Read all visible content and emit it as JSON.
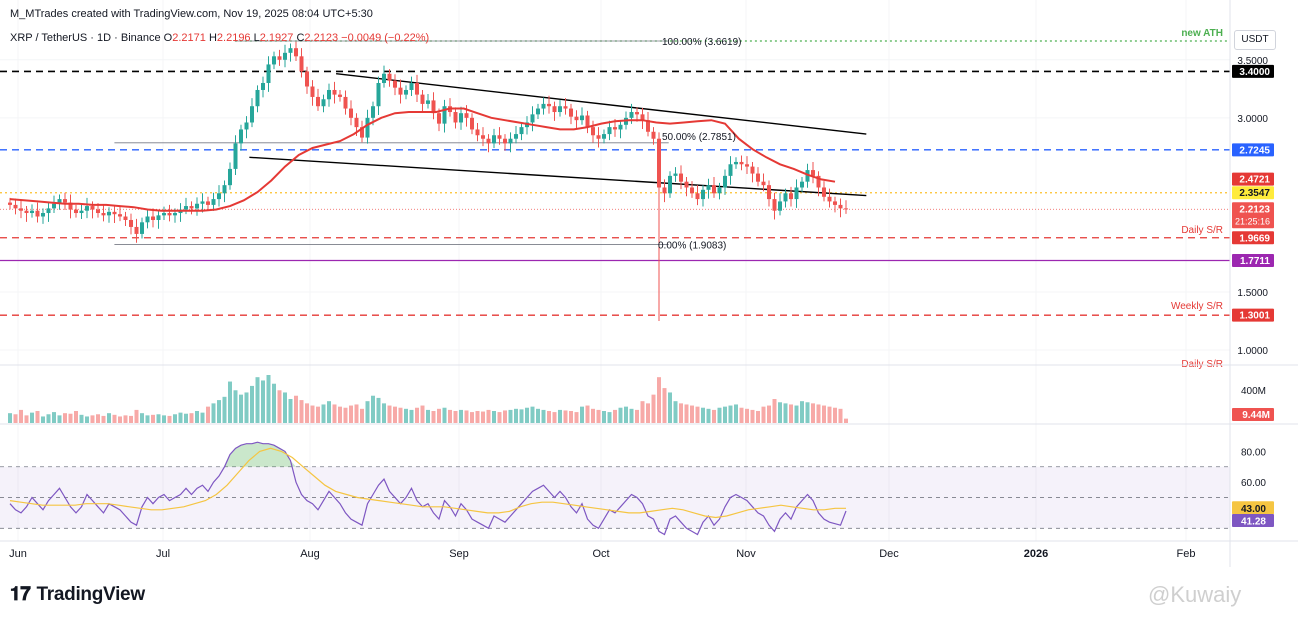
{
  "header": {
    "credit": "M_MTrades created with TradingView.com, Nov 19, 2025 08:04 UTC+5:30",
    "symbol": "XRP / TetherUS · 1D · Binance",
    "o_label": "O",
    "o_value": "2.2171",
    "h_label": "H",
    "h_value": "2.2196",
    "l_label": "L",
    "l_value": "2.1927",
    "c_label": "C",
    "c_value": "2.2123",
    "change": "−0.0049 (−0.22%)",
    "currency": "USDT"
  },
  "brand": {
    "logo_text": "TradingView",
    "watermark": "@Kuwaiy"
  },
  "colors": {
    "bull": "#26a69a",
    "bear": "#ef5350",
    "ma": "#e53935",
    "rsi": "#7e57c2",
    "rsi_ma": "#f5c542",
    "support_red": "#e53935",
    "support_blue": "#2962ff",
    "purple_line": "#9c27b0",
    "ath_green": "#4caf50"
  },
  "chart_data": [
    {
      "type": "candlestick",
      "title": "XRP / TetherUS · 1D · Binance",
      "ylim": [
        0.9,
        3.72
      ],
      "x_ticks": [
        "Jun",
        "Jul",
        "Aug",
        "Sep",
        "Oct",
        "Nov",
        "Dec",
        "2026",
        "Feb"
      ],
      "y_ticks": [
        "3.5000",
        "3.0000",
        "1.5000",
        "1.0000"
      ],
      "last_price": "2.2123",
      "countdown": "21:25:16",
      "price_badges": [
        {
          "label": "3.4000",
          "value": 3.4,
          "color": "#000000"
        },
        {
          "label": "2.7245",
          "value": 2.7245,
          "color": "#2962ff"
        },
        {
          "label": "2.4721",
          "value": 2.4721,
          "color": "#e53935"
        },
        {
          "label": "2.3547",
          "value": 2.3547,
          "color": "#ffeb3b"
        },
        {
          "label": "1.9669",
          "value": 1.9669,
          "color": "#e53935"
        },
        {
          "label": "1.7711",
          "value": 1.7711,
          "color": "#9c27b0"
        },
        {
          "label": "1.3001",
          "value": 1.3001,
          "color": "#e53935"
        }
      ],
      "levels": [
        {
          "name": "resistance-3.40",
          "value": 3.4,
          "style": "dashed",
          "color": "#000000"
        },
        {
          "name": "level-2.7245",
          "value": 2.7245,
          "style": "dashed",
          "color": "#2962ff"
        },
        {
          "name": "level-2.3547",
          "value": 2.3547,
          "style": "dotted",
          "color": "#fbc02d"
        },
        {
          "name": "daily-sr",
          "value": 1.9669,
          "style": "dashed",
          "color": "#e53935"
        },
        {
          "name": "level-1.7711",
          "value": 1.7711,
          "style": "solid",
          "color": "#9c27b0"
        },
        {
          "name": "weekly-sr",
          "value": 1.3001,
          "style": "dashed",
          "color": "#e53935"
        },
        {
          "name": "ath",
          "value": 3.6619,
          "style": "dotted",
          "color": "#4caf50"
        }
      ],
      "annotations": [
        {
          "text": "new ATH"
        },
        {
          "text": "100.00% (3.6619)"
        },
        {
          "text": "50.00% (2.7851)"
        },
        {
          "text": "0.00% (1.9083)"
        },
        {
          "text": "Daily S/R"
        },
        {
          "text": "Weekly S/R"
        },
        {
          "text": "Daily S/R"
        }
      ],
      "closes": [
        2.25,
        2.22,
        2.2,
        2.18,
        2.2,
        2.15,
        2.18,
        2.22,
        2.26,
        2.3,
        2.27,
        2.21,
        2.18,
        2.2,
        2.24,
        2.21,
        2.18,
        2.16,
        2.19,
        2.17,
        2.15,
        2.12,
        2.06,
        2.0,
        2.1,
        2.15,
        2.12,
        2.16,
        2.18,
        2.16,
        2.18,
        2.21,
        2.24,
        2.22,
        2.26,
        2.28,
        2.25,
        2.3,
        2.35,
        2.42,
        2.56,
        2.78,
        2.9,
        2.96,
        3.1,
        3.24,
        3.3,
        3.46,
        3.53,
        3.5,
        3.56,
        3.6,
        3.53,
        3.4,
        3.27,
        3.18,
        3.1,
        3.16,
        3.24,
        3.2,
        3.18,
        3.08,
        3.0,
        2.92,
        2.83,
        3.0,
        3.1,
        3.3,
        3.38,
        3.32,
        3.26,
        3.2,
        3.24,
        3.3,
        3.2,
        3.12,
        3.15,
        3.04,
        2.95,
        3.1,
        3.05,
        2.96,
        3.04,
        3.0,
        2.9,
        2.85,
        2.82,
        2.78,
        2.85,
        2.82,
        2.78,
        2.82,
        2.86,
        2.92,
        2.96,
        3.03,
        3.08,
        3.12,
        3.1,
        3.05,
        3.1,
        3.08,
        3.01,
        2.98,
        3.02,
        2.92,
        2.85,
        2.82,
        2.86,
        2.92,
        2.9,
        2.94,
        3.0,
        3.05,
        3.03,
        2.98,
        2.88,
        2.82,
        2.4,
        2.35,
        2.5,
        2.52,
        2.45,
        2.4,
        2.35,
        2.3,
        2.38,
        2.42,
        2.35,
        2.4,
        2.5,
        2.6,
        2.62,
        2.6,
        2.58,
        2.52,
        2.45,
        2.42,
        2.3,
        2.2,
        2.28,
        2.35,
        2.3,
        2.4,
        2.45,
        2.55,
        2.5,
        2.4,
        2.32,
        2.28,
        2.25,
        2.22,
        2.2123
      ],
      "ma_series": {
        "name": "",
        "values": [
          2.3,
          2.29,
          2.28,
          2.27,
          2.26,
          2.26,
          2.25,
          2.25,
          2.24,
          2.23,
          2.21,
          2.2,
          2.2,
          2.2,
          2.2,
          2.21,
          2.24,
          2.29,
          2.36,
          2.46,
          2.58,
          2.68,
          2.74,
          2.77,
          2.8,
          2.86,
          2.94,
          3.0,
          3.04,
          3.05,
          3.05,
          3.05,
          3.08,
          3.08,
          3.04,
          3.0,
          2.98,
          2.96,
          2.94,
          2.92,
          2.9,
          2.9,
          2.92,
          2.95,
          2.97,
          2.98,
          2.98,
          2.96,
          2.95,
          2.96,
          2.97,
          2.98,
          2.95,
          2.82,
          2.73,
          2.66,
          2.6,
          2.56,
          2.51,
          2.47,
          2.45
        ],
        "start_index": 0,
        "step": 2.5
      },
      "trendlines": [
        {
          "name": "upper-trendline",
          "from": [
            "2025-08-06",
            3.38
          ],
          "to": [
            "2025-11-24",
            2.86
          ]
        },
        {
          "name": "lower-trendline",
          "from": [
            "2025-07-19",
            2.66
          ],
          "to": [
            "2025-11-24",
            2.33
          ]
        },
        {
          "name": "fib-50-line",
          "from": [
            "2025-06-21",
            2.785
          ],
          "to": [
            "2025-10-14",
            2.785
          ]
        },
        {
          "name": "fib-0-line",
          "from": [
            "2025-06-21",
            1.9083
          ],
          "to": [
            "2025-10-14",
            1.9083
          ]
        },
        {
          "name": "fib-100-line",
          "from": [
            "2025-07-16",
            3.6619
          ],
          "to": [
            "2025-10-14",
            3.6619
          ]
        }
      ]
    },
    {
      "type": "bar",
      "title": "Volume",
      "y_ticks": [
        "400M"
      ],
      "last_value_label": "9.44M",
      "values": [
        90,
        80,
        120,
        70,
        95,
        110,
        60,
        80,
        100,
        70,
        90,
        85,
        110,
        75,
        60,
        70,
        80,
        65,
        90,
        75,
        60,
        70,
        65,
        120,
        90,
        70,
        75,
        80,
        70,
        65,
        80,
        95,
        85,
        90,
        110,
        95,
        150,
        180,
        210,
        240,
        380,
        300,
        260,
        280,
        340,
        420,
        390,
        440,
        360,
        300,
        280,
        220,
        250,
        210,
        180,
        160,
        150,
        170,
        200,
        170,
        150,
        140,
        160,
        170,
        130,
        200,
        250,
        230,
        180,
        160,
        150,
        140,
        130,
        120,
        140,
        160,
        120,
        110,
        130,
        140,
        120,
        110,
        120,
        115,
        100,
        110,
        105,
        120,
        110,
        100,
        115,
        120,
        130,
        125,
        140,
        150,
        130,
        120,
        110,
        100,
        120,
        115,
        110,
        100,
        150,
        160,
        130,
        120,
        110,
        100,
        120,
        140,
        150,
        130,
        120,
        200,
        180,
        260,
        420,
        320,
        280,
        200,
        180,
        170,
        160,
        150,
        140,
        130,
        120,
        140,
        150,
        160,
        170,
        140,
        130,
        120,
        110,
        150,
        160,
        220,
        190,
        180,
        170,
        160,
        200,
        190,
        180,
        170,
        160,
        150,
        140,
        130,
        40
      ]
    },
    {
      "type": "line",
      "title": "RSI",
      "ylim": [
        25,
        90
      ],
      "y_ticks": [
        "80.00",
        "60.00"
      ],
      "levels": [
        70,
        50,
        30
      ],
      "rsi_label": "41.28",
      "rsi_ma_label": "43.00",
      "series": [
        {
          "name": "",
          "values": [
            46,
            42,
            40,
            44,
            50,
            46,
            42,
            48,
            52,
            56,
            50,
            44,
            40,
            44,
            52,
            48,
            44,
            40,
            46,
            44,
            42,
            38,
            34,
            32,
            44,
            50,
            46,
            50,
            52,
            48,
            50,
            52,
            56,
            52,
            56,
            58,
            54,
            60,
            64,
            70,
            78,
            82,
            84,
            85,
            85,
            86,
            85,
            85,
            84,
            82,
            80,
            74,
            60,
            52,
            48,
            46,
            42,
            48,
            54,
            50,
            46,
            40,
            36,
            34,
            32,
            46,
            52,
            58,
            62,
            54,
            50,
            46,
            50,
            56,
            48,
            44,
            46,
            40,
            36,
            48,
            44,
            38,
            46,
            42,
            36,
            34,
            32,
            30,
            38,
            36,
            34,
            38,
            42,
            46,
            50,
            54,
            56,
            58,
            54,
            50,
            54,
            50,
            44,
            40,
            46,
            36,
            32,
            30,
            36,
            42,
            40,
            44,
            48,
            52,
            50,
            46,
            38,
            36,
            28,
            26,
            36,
            38,
            34,
            30,
            28,
            26,
            34,
            38,
            32,
            36,
            44,
            50,
            52,
            50,
            48,
            44,
            40,
            38,
            32,
            28,
            36,
            40,
            36,
            44,
            48,
            52,
            48,
            40,
            36,
            34,
            33,
            32,
            41.28
          ]
        },
        {
          "name": "",
          "values": [
            48,
            47,
            46,
            45,
            45,
            45,
            45,
            46,
            46,
            46,
            45,
            44,
            43,
            42,
            42,
            43,
            44,
            46,
            48,
            52,
            58,
            66,
            74,
            80,
            82,
            80,
            76,
            70,
            64,
            58,
            54,
            52,
            50,
            49,
            48,
            47,
            46,
            45,
            44,
            44,
            44,
            43,
            42,
            41,
            40,
            40,
            41,
            44,
            46,
            47,
            47,
            46,
            45,
            44,
            43,
            42,
            41,
            40,
            40,
            41,
            42,
            43,
            42,
            40,
            38,
            37,
            38,
            40,
            42,
            43,
            44,
            45,
            44,
            43,
            42,
            42,
            43,
            43.0
          ]
        }
      ]
    }
  ],
  "pane_badges": {
    "volume": "9.44M",
    "rsi_ma": "43.00",
    "rsi": "41.28"
  }
}
